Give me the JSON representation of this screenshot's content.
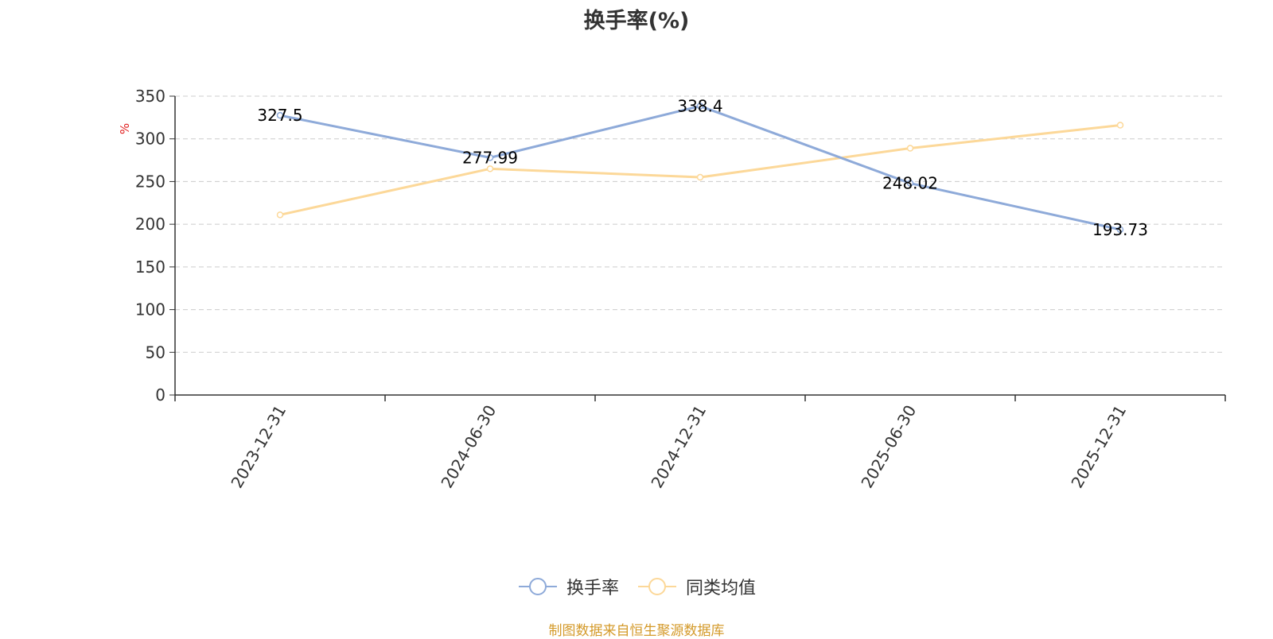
{
  "chart_data": {
    "type": "line",
    "title": "换手率(%)",
    "ylabel": "%",
    "xlabel": "",
    "categories": [
      "2023-12-31",
      "2024-06-30",
      "2024-12-31",
      "2025-06-30",
      "2025-12-31"
    ],
    "ylim": [
      0,
      350
    ],
    "yticks": [
      0,
      50,
      100,
      150,
      200,
      250,
      300,
      350
    ],
    "grid": true,
    "legend_position": "bottom-center",
    "series": [
      {
        "name": "换手率",
        "color": "#8eaad9",
        "values": [
          327.5,
          277.99,
          338.4,
          248.02,
          193.73
        ],
        "labels": [
          "327.5",
          "277.99",
          "338.4",
          "248.02",
          "193.73"
        ]
      },
      {
        "name": "同类均值",
        "color": "#fcd899",
        "values": [
          211,
          265,
          255,
          289,
          316
        ]
      }
    ]
  },
  "source_note": "制图数据来自恒生聚源数据库",
  "colors": {
    "axis": "#333333",
    "grid": "#cccccc",
    "ylabel": "#e02020",
    "source": "#d49a2a"
  }
}
